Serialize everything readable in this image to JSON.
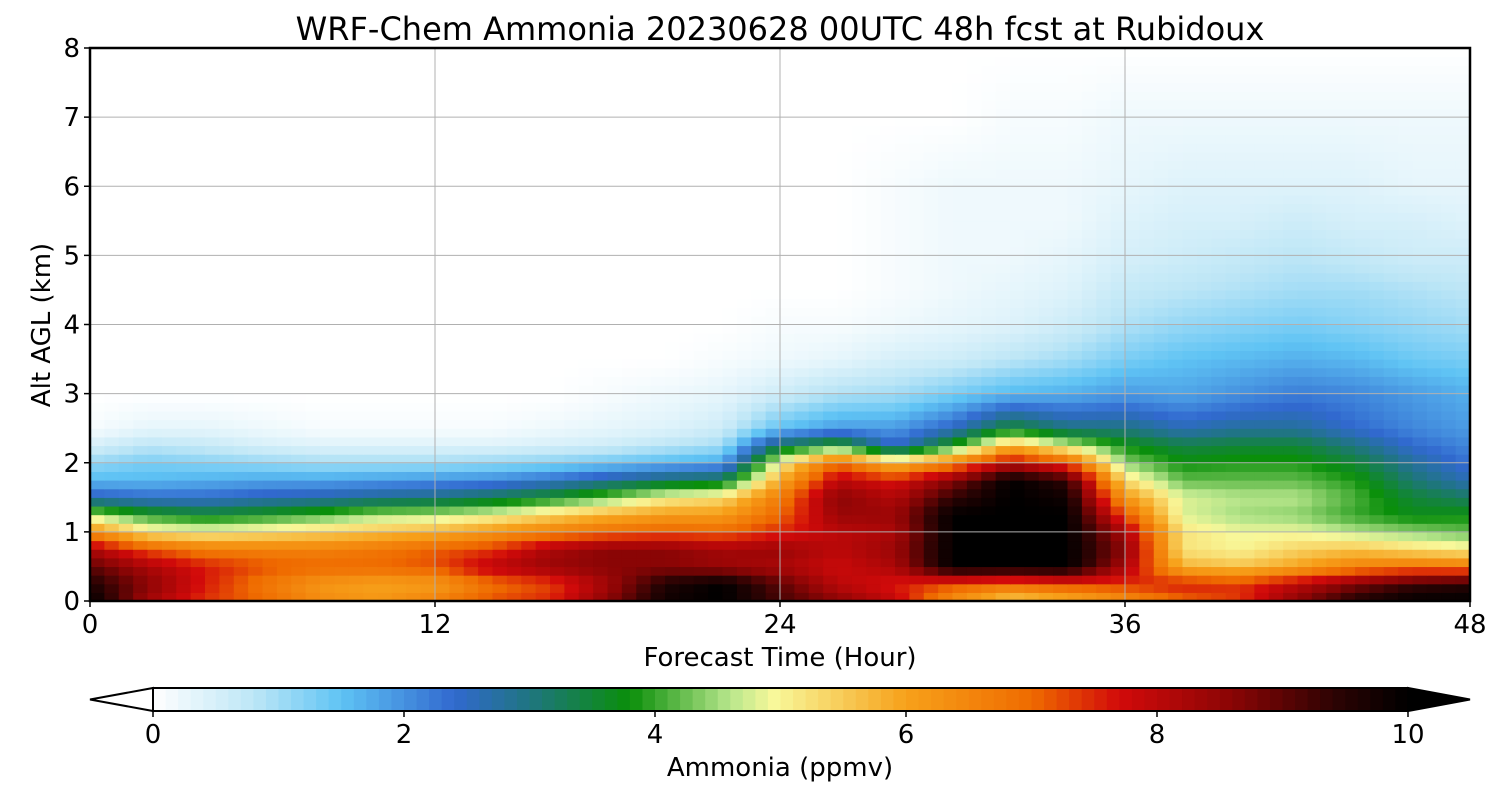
{
  "chart_data": {
    "type": "heatmap",
    "title": "WRF-Chem Ammonia  20230628 00UTC 48h fcst at Rubidoux",
    "xlabel": "Forecast Time (Hour)",
    "ylabel": "Alt AGL (km)",
    "xlim": [
      0,
      48
    ],
    "ylim": [
      0,
      8
    ],
    "x_ticks": [
      "0",
      "12",
      "24",
      "36",
      "48"
    ],
    "y_ticks": [
      "0",
      "1",
      "2",
      "3",
      "4",
      "5",
      "6",
      "7",
      "8"
    ],
    "grid": true,
    "colorbar": {
      "label": "Ammonia  (ppmv)",
      "range": [
        0,
        10
      ],
      "ticks": [
        "0",
        "2",
        "4",
        "6",
        "8",
        "10"
      ],
      "extend": "both",
      "orientation": "horizontal",
      "placement": "bottom",
      "colors": [
        {
          "v": 0.0,
          "c": "#ffffff"
        },
        {
          "v": 0.8,
          "c": "#bde6f6"
        },
        {
          "v": 1.5,
          "c": "#5fc3f4"
        },
        {
          "v": 2.4,
          "c": "#3169cf"
        },
        {
          "v": 3.0,
          "c": "#1f7580"
        },
        {
          "v": 3.8,
          "c": "#0a8f0a"
        },
        {
          "v": 4.6,
          "c": "#b8e68c"
        },
        {
          "v": 4.95,
          "c": "#f8f89a"
        },
        {
          "v": 6.0,
          "c": "#f7a11a"
        },
        {
          "v": 7.0,
          "c": "#ef6b00"
        },
        {
          "v": 7.7,
          "c": "#d20a0a"
        },
        {
          "v": 8.6,
          "c": "#8a0505"
        },
        {
          "v": 9.4,
          "c": "#2e0303"
        },
        {
          "v": 10.0,
          "c": "#000000"
        }
      ]
    },
    "x": [
      0,
      2,
      4,
      6,
      8,
      10,
      12,
      14,
      16,
      18,
      20,
      22,
      24,
      26,
      28,
      30,
      32,
      34,
      36,
      38,
      40,
      42,
      44,
      46,
      48
    ],
    "y": [
      0,
      0.25,
      0.5,
      0.75,
      1.0,
      1.25,
      1.5,
      1.75,
      2.0,
      2.25,
      2.5,
      3.0,
      3.5,
      4.0,
      4.5,
      5.0,
      5.5,
      6.0,
      7.0,
      8.0
    ],
    "z": [
      [
        10.0,
        8.3,
        7.4,
        7.0,
        6.4,
        6.2,
        6.6,
        7.2,
        7.5,
        8.6,
        9.8,
        10.0,
        9.2,
        8.6,
        7.9,
        6.3,
        5.4,
        5.7,
        6.3,
        7.0,
        7.4,
        8.6,
        9.6,
        10.0,
        10.0
      ],
      [
        9.6,
        8.6,
        7.6,
        6.8,
        6.2,
        6.0,
        6.1,
        6.9,
        7.3,
        8.3,
        9.6,
        10.0,
        9.0,
        8.0,
        7.6,
        7.2,
        6.9,
        7.3,
        7.4,
        7.6,
        7.4,
        8.0,
        8.7,
        9.3,
        9.5
      ],
      [
        9.0,
        8.2,
        7.6,
        7.2,
        7.0,
        7.0,
        7.2,
        8.0,
        8.4,
        8.6,
        8.6,
        8.4,
        8.2,
        7.8,
        8.2,
        10.0,
        10.0,
        10.0,
        8.2,
        5.8,
        5.6,
        6.0,
        6.6,
        6.8,
        6.7
      ],
      [
        8.2,
        7.2,
        6.7,
        6.6,
        6.6,
        6.8,
        7.1,
        7.4,
        8.2,
        8.6,
        8.6,
        8.3,
        8.4,
        8.0,
        8.4,
        10.0,
        10.0,
        10.0,
        8.6,
        5.2,
        5.0,
        5.4,
        5.6,
        5.3,
        5.1
      ],
      [
        6.4,
        5.2,
        5.0,
        5.2,
        5.4,
        5.6,
        5.8,
        6.2,
        6.6,
        6.9,
        7.1,
        7.0,
        7.5,
        8.0,
        8.2,
        10.0,
        10.0,
        10.0,
        8.2,
        5.2,
        4.9,
        4.9,
        4.6,
        4.4,
        4.2
      ],
      [
        4.6,
        3.9,
        3.6,
        3.8,
        4.1,
        4.5,
        4.6,
        4.9,
        5.4,
        5.8,
        6.1,
        6.1,
        7.0,
        8.4,
        8.4,
        10.0,
        10.0,
        10.0,
        7.2,
        4.8,
        4.5,
        4.4,
        4.0,
        3.7,
        3.8
      ],
      [
        2.6,
        2.4,
        2.4,
        2.6,
        2.7,
        2.9,
        3.0,
        3.3,
        3.7,
        4.3,
        5.0,
        5.3,
        6.7,
        8.6,
        8.1,
        9.4,
        10.0,
        9.8,
        6.2,
        4.8,
        4.6,
        4.6,
        4.1,
        3.5,
        3.2
      ],
      [
        1.6,
        1.6,
        1.7,
        1.8,
        1.8,
        1.9,
        2.0,
        2.1,
        2.4,
        2.8,
        3.2,
        3.4,
        5.9,
        8.0,
        7.6,
        8.6,
        10.0,
        9.4,
        5.3,
        4.2,
        4.2,
        4.2,
        3.9,
        3.1,
        2.6
      ],
      [
        1.1,
        1.3,
        1.2,
        1.1,
        1.0,
        1.0,
        1.0,
        1.1,
        1.2,
        1.4,
        1.6,
        1.8,
        5.0,
        7.0,
        5.6,
        6.6,
        8.0,
        7.2,
        4.4,
        3.8,
        3.9,
        3.9,
        3.5,
        2.8,
        2.3
      ],
      [
        0.5,
        0.8,
        0.7,
        0.5,
        0.4,
        0.4,
        0.4,
        0.4,
        0.5,
        0.6,
        0.8,
        1.0,
        3.3,
        4.0,
        2.4,
        3.9,
        5.8,
        4.8,
        3.8,
        3.4,
        3.5,
        3.5,
        3.0,
        2.4,
        2.1
      ],
      [
        0.1,
        0.3,
        0.3,
        0.2,
        0.1,
        0.1,
        0.1,
        0.1,
        0.2,
        0.3,
        0.4,
        0.6,
        1.5,
        1.9,
        1.9,
        2.5,
        3.6,
        3.0,
        3.0,
        2.6,
        2.8,
        2.8,
        2.4,
        2.1,
        1.9
      ],
      [
        0.0,
        0.0,
        0.0,
        0.0,
        0.0,
        0.0,
        0.0,
        0.0,
        0.0,
        0.1,
        0.2,
        0.3,
        0.6,
        0.9,
        1.0,
        1.3,
        1.6,
        1.7,
        1.9,
        1.8,
        2.0,
        2.2,
        2.1,
        1.9,
        1.7
      ],
      [
        0.0,
        0.0,
        0.0,
        0.0,
        0.0,
        0.0,
        0.0,
        0.0,
        0.0,
        0.0,
        0.0,
        0.1,
        0.2,
        0.3,
        0.5,
        0.6,
        0.8,
        1.0,
        1.3,
        1.5,
        1.6,
        1.7,
        1.6,
        1.4,
        1.3
      ],
      [
        0.0,
        0.0,
        0.0,
        0.0,
        0.0,
        0.0,
        0.0,
        0.0,
        0.0,
        0.0,
        0.0,
        0.0,
        0.1,
        0.1,
        0.2,
        0.3,
        0.4,
        0.6,
        0.9,
        1.1,
        1.2,
        1.3,
        1.2,
        1.1,
        1.0
      ],
      [
        0.0,
        0.0,
        0.0,
        0.0,
        0.0,
        0.0,
        0.0,
        0.0,
        0.0,
        0.0,
        0.0,
        0.0,
        0.0,
        0.0,
        0.1,
        0.2,
        0.3,
        0.4,
        0.7,
        0.8,
        0.9,
        1.0,
        1.0,
        0.9,
        0.8
      ],
      [
        0.0,
        0.0,
        0.0,
        0.0,
        0.0,
        0.0,
        0.0,
        0.0,
        0.0,
        0.0,
        0.0,
        0.0,
        0.0,
        0.0,
        0.1,
        0.2,
        0.2,
        0.3,
        0.5,
        0.6,
        0.7,
        0.8,
        0.7,
        0.6,
        0.6
      ],
      [
        0.0,
        0.0,
        0.0,
        0.0,
        0.0,
        0.0,
        0.0,
        0.0,
        0.0,
        0.0,
        0.0,
        0.0,
        0.0,
        0.0,
        0.1,
        0.2,
        0.2,
        0.2,
        0.4,
        0.5,
        0.5,
        0.6,
        0.5,
        0.5,
        0.4
      ],
      [
        0.0,
        0.0,
        0.0,
        0.0,
        0.0,
        0.0,
        0.0,
        0.0,
        0.0,
        0.0,
        0.0,
        0.0,
        0.0,
        0.0,
        0.1,
        0.2,
        0.2,
        0.2,
        0.3,
        0.4,
        0.4,
        0.4,
        0.4,
        0.3,
        0.3
      ],
      [
        0.0,
        0.0,
        0.0,
        0.0,
        0.0,
        0.0,
        0.0,
        0.0,
        0.0,
        0.0,
        0.0,
        0.0,
        0.0,
        0.0,
        0.0,
        0.0,
        0.1,
        0.1,
        0.2,
        0.2,
        0.2,
        0.2,
        0.2,
        0.2,
        0.2
      ],
      [
        0.0,
        0.0,
        0.0,
        0.0,
        0.0,
        0.0,
        0.0,
        0.0,
        0.0,
        0.0,
        0.0,
        0.0,
        0.0,
        0.0,
        0.0,
        0.0,
        0.0,
        0.0,
        0.0,
        0.0,
        0.0,
        0.0,
        0.0,
        0.0,
        0.0
      ]
    ]
  }
}
